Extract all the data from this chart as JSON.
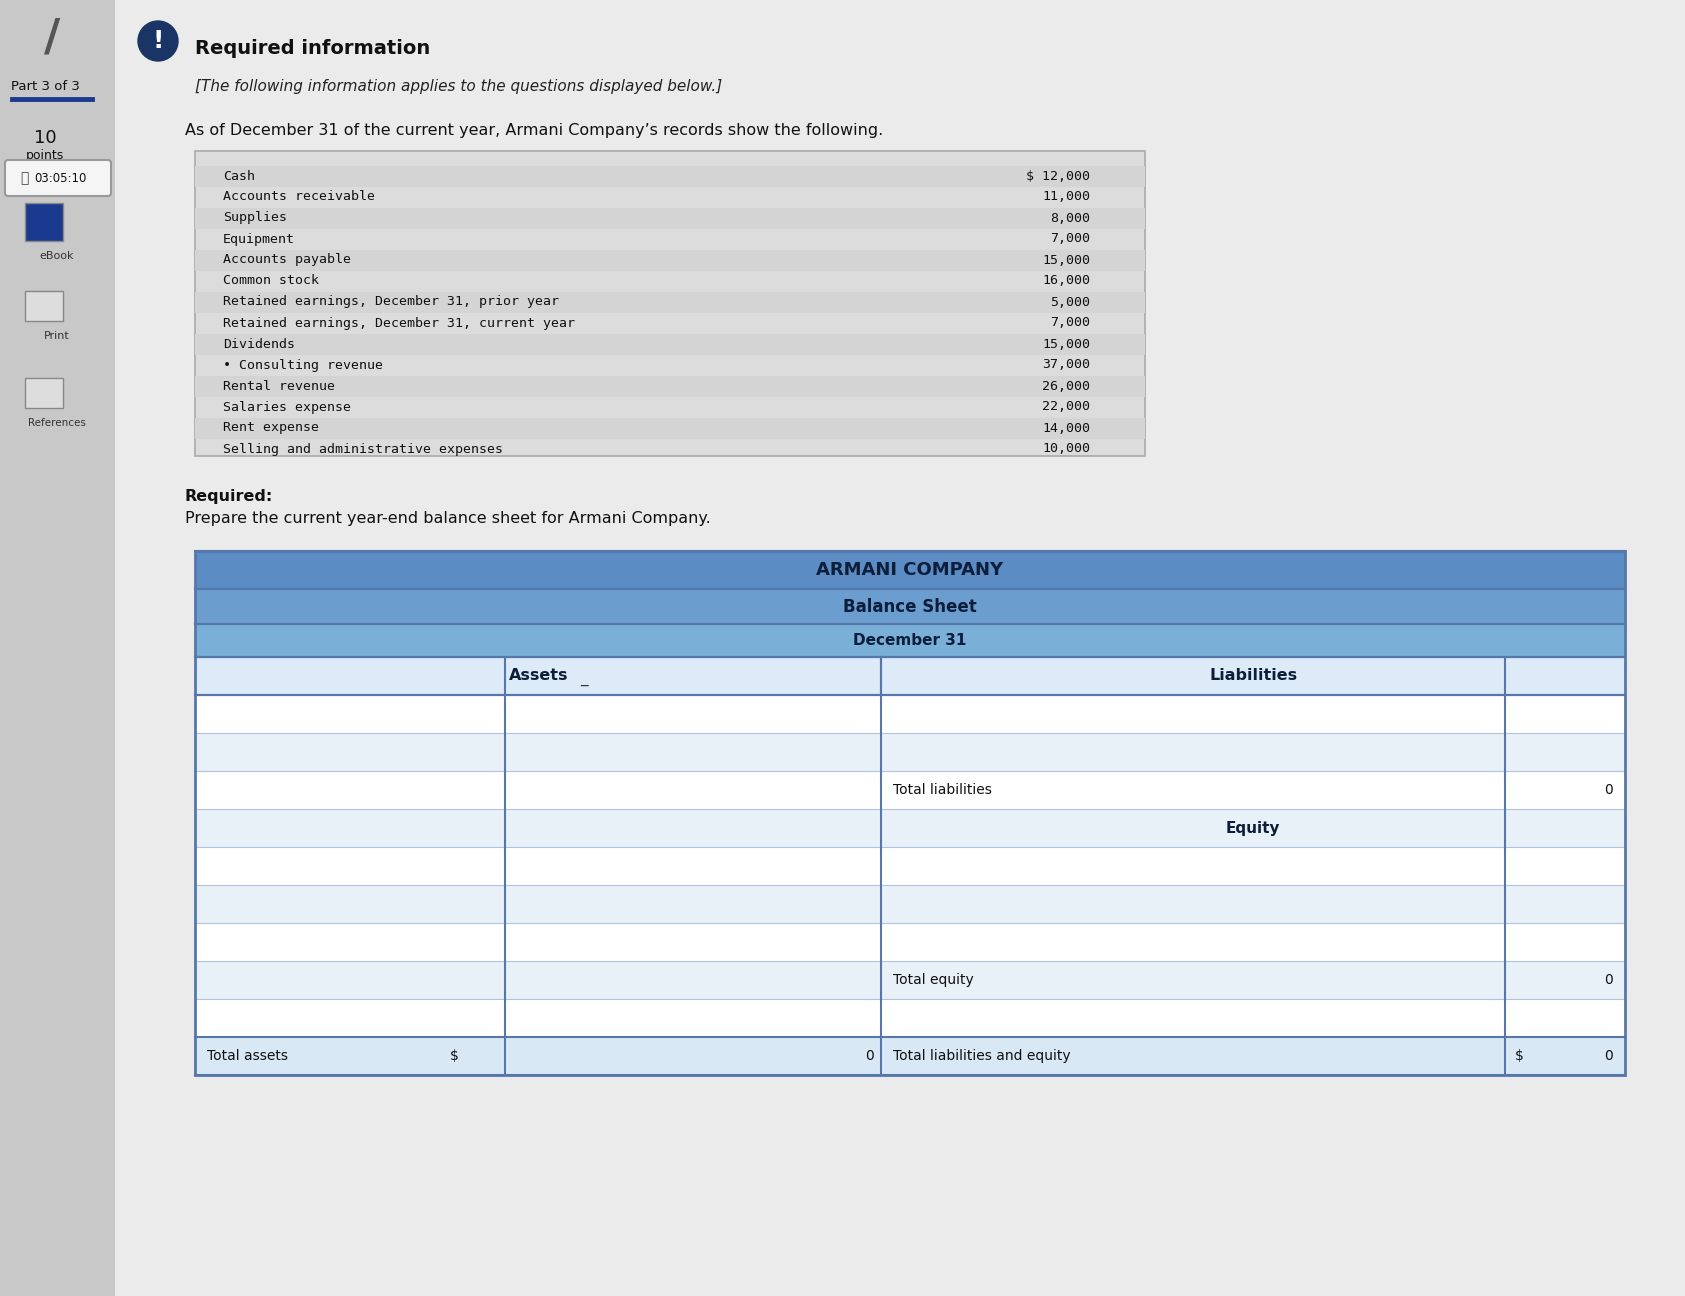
{
  "header_title": "Required information",
  "header_subtitle": "[The following information applies to the questions displayed below.]",
  "intro_text": "As of December 31 of the current year, Armani Company’s records show the following.",
  "line_items": [
    [
      "Cash",
      "$ 12,000"
    ],
    [
      "Accounts receivable",
      "11,000"
    ],
    [
      "Supplies",
      "8,000"
    ],
    [
      "Equipment",
      "7,000"
    ],
    [
      "Accounts payable",
      "15,000"
    ],
    [
      "Common stock",
      "16,000"
    ],
    [
      "Retained earnings, December 31, prior year",
      "5,000"
    ],
    [
      "Retained earnings, December 31, current year",
      "7,000"
    ],
    [
      "Dividends",
      "15,000"
    ],
    [
      "• Consulting revenue",
      "37,000"
    ],
    [
      "Rental revenue",
      "26,000"
    ],
    [
      "Salaries expense",
      "22,000"
    ],
    [
      "Rent expense",
      "14,000"
    ],
    [
      "Selling and administrative expenses",
      "10,000"
    ]
  ],
  "required_label": "Required:",
  "required_text": "Prepare the current year-end balance sheet for Armani Company.",
  "table_title1": "ARMANI COMPANY",
  "table_title2": "Balance Sheet",
  "table_title3": "December 31",
  "left_col_label": "Assets",
  "right_col_label": "Liabilities",
  "equity_label": "Equity",
  "total_liabilities_label": "Total liabilities",
  "total_equity_label": "Total equity",
  "total_assets_label": "Total assets",
  "total_liab_equity_label": "Total liabilities and equity",
  "total_assets_val": "0",
  "total_liab_val": "0",
  "total_equity_val": "0",
  "total_liab_equity_val": "0",
  "dollar_sign": "$",
  "table_header_color1": "#5b8cc4",
  "table_header_color2": "#6b9dcf",
  "table_header_color3": "#7aafd8",
  "col_hdr_bg": "#ddeaf7",
  "table_border_color": "#5577aa",
  "row_white": "#ffffff",
  "row_light": "#e8f0f8",
  "sidebar_bg": "#c8c8c8",
  "main_bg": "#ebebeb",
  "infobox_bg": "#dcdcdc",
  "infobox_border": "#aaaaaa"
}
